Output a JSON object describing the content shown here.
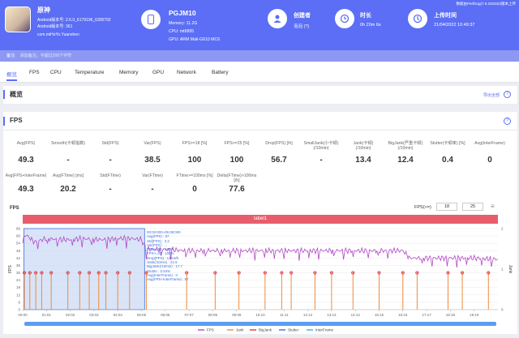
{
  "header": {
    "app_name": "原神",
    "app_version": "Android版本号: 2.6.0_6179196_6305792",
    "app_version_code": "Android版本号: 361",
    "package": "com.miHoYo.Yuanshen",
    "device_name": "PGJM10",
    "memory": "Memory: 11.2G",
    "cpu": "CPU: mt6895",
    "gpu": "GPU: ARM Mali-G610 MC6",
    "creator_label": "创建者",
    "creator_value": "泡泡 (?)",
    "duration_label": "时长",
    "duration_value": "0h 20m 6s",
    "upload_label": "上传时间",
    "upload_value": "21/04/2022 10:49:37",
    "tool_info": "数据由PerfDog(7.0.220332)版本上传"
  },
  "remark": {
    "label": "备注:",
    "text": "添加备注，不超过200个字符"
  },
  "tabs": [
    "概览",
    "FPS",
    "CPU",
    "Temperature",
    "Memory",
    "GPU",
    "Network",
    "Battery"
  ],
  "overview": {
    "title": "概览",
    "action": "导出全部"
  },
  "fps_section": {
    "title": "FPS"
  },
  "stats_row1": [
    {
      "label": "Avg(FPS)",
      "value": "49.3"
    },
    {
      "label": "Smooth(卡顿指数)",
      "value": "-"
    },
    {
      "label": "Std(FPS)",
      "value": "-"
    },
    {
      "label": "Var(FPS)",
      "value": "38.5"
    },
    {
      "label": "FPS>=18 [%]",
      "value": "100"
    },
    {
      "label": "FPS>=25 [%]",
      "value": "100"
    },
    {
      "label": "Drop(FPS) [/h]",
      "value": "56.7"
    },
    {
      "label": "SmallJank(小卡顿)\n(/10min)",
      "value": "-"
    },
    {
      "label": "Jank(卡顿)\n(/10min)",
      "value": "13.4"
    },
    {
      "label": "BigJank(严重卡顿)\n(/10min)",
      "value": "12.4"
    },
    {
      "label": "Stutter(卡顿率) [%]",
      "value": "0.4"
    },
    {
      "label": "Avg(InterFrame)",
      "value": "0"
    }
  ],
  "stats_row2": [
    {
      "label": "Avg(FPS+InterFrame)",
      "value": "49.3"
    },
    {
      "label": "Avg(FTime) [ms]",
      "value": "20.2"
    },
    {
      "label": "Std(FTime)",
      "value": "-"
    },
    {
      "label": "Var(FTime)",
      "value": "-"
    },
    {
      "label": "FTime>=100ms [%]",
      "value": "0"
    },
    {
      "label": "Delta(FTime)>100ms [/h]",
      "value": "77.6"
    }
  ],
  "chart_controls": {
    "title": "FPS",
    "threshold_label": "FPS(>=)",
    "threshold_1": "18",
    "threshold_2": "25",
    "label_bar": "label1"
  },
  "tooltip": [
    "00:03:000~05:08:000",
    "Avg(FPS) : 57",
    "Std(FPS) : 3.2",
    "Var(FPS) : ...",
    "FPS>=18 : 100%",
    "FPS>=25 : 100%",
    "Drop(FPS) : 129.8/h",
    "Jank(/10min) : 21.6",
    "BigJank(/10min) : 17.7",
    "Stutter : 0.54%",
    "Avg(InterFrame) : 0",
    "Avg(FPS+InterFrame) : 57"
  ],
  "chart_data": {
    "type": "line",
    "ylabel_left": "FPS",
    "ylabel_right": "Jank",
    "ylim": [
      0,
      66
    ],
    "yticks": [
      0,
      6,
      12,
      18,
      24,
      30,
      36,
      42,
      48,
      54,
      60,
      66
    ],
    "y2ticks": [
      0,
      1,
      2
    ],
    "xticks": [
      "00:00",
      "01:01",
      "02:02",
      "03:03",
      "04:04",
      "05:05",
      "06:06",
      "07:07",
      "08:08",
      "09:09",
      "10:10",
      "11:11",
      "12:12",
      "13:13",
      "14:14",
      "15:15",
      "16:16",
      "17:17",
      "18:18",
      "19:19"
    ],
    "series": [
      {
        "name": "FPS",
        "color": "#b545c9",
        "x": [
          0,
          0.2,
          0.5,
          1,
          1.5,
          2,
          2.5,
          3,
          3.5,
          4,
          4.5,
          5,
          5.2,
          6,
          7,
          8,
          9,
          10,
          11,
          12,
          13,
          14,
          15,
          16,
          16.3,
          17,
          18,
          19,
          20
        ],
        "values": [
          60,
          60,
          55,
          58,
          57,
          57,
          58,
          57,
          57,
          58,
          58,
          57,
          49,
          49,
          48,
          48,
          48,
          48,
          48,
          48,
          48,
          48,
          48,
          48,
          42,
          42,
          42,
          42,
          41
        ]
      },
      {
        "name": "Jank",
        "color": "#f08a3c"
      },
      {
        "name": "BigJank",
        "color": "#e0353b"
      },
      {
        "name": "Stutter",
        "color": "#3a6fe0"
      },
      {
        "name": "InterFrame",
        "color": "#38b0e0"
      }
    ],
    "jank_times": [
      0.07,
      0.3,
      0.55,
      0.8,
      1.2,
      1.9,
      2.4,
      2.8,
      3.2,
      3.5,
      4.0,
      4.5,
      5.2,
      6.9,
      8.1,
      9.1,
      10.2,
      10.9,
      11.3,
      12.3,
      13.0,
      13.9,
      15.0,
      16.0,
      16.6,
      17.9,
      18.5,
      19.6
    ],
    "selection": [
      "00:03",
      "05:08"
    ]
  }
}
